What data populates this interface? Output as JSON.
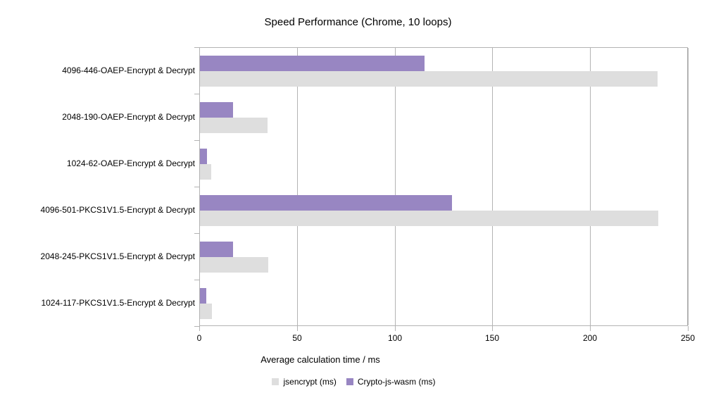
{
  "chart_data": {
    "type": "bar",
    "orientation": "horizontal",
    "title": "Speed Performance (Chrome, 10 loops)",
    "xlabel": "Average calculation time / ms",
    "categories": [
      "4096-446-OAEP-Encrypt & Decrypt",
      "2048-190-OAEP-Encrypt & Decrypt",
      "1024-62-OAEP-Encrypt & Decrypt",
      "4096-501-PKCS1V1.5-Encrypt & Decrypt",
      "2048-245-PKCS1V1.5-Encrypt & Decrypt",
      "1024-117-PKCS1V1.5-Encrypt & Decrypt"
    ],
    "series": [
      {
        "name": "jsencrypt (ms)",
        "color": "#dedede",
        "values": [
          234,
          34.5,
          5.8,
          234.5,
          34.8,
          6.1
        ]
      },
      {
        "name": "Crypto-js-wasm (ms)",
        "color": "#9886c2",
        "values": [
          115,
          17,
          3.7,
          129,
          17,
          3.3
        ]
      }
    ],
    "xlim": [
      0,
      250
    ],
    "xticks": [
      0,
      50,
      100,
      150,
      200,
      250
    ],
    "grid": true,
    "legend_position": "bottom",
    "colors": {
      "axis": "#b3b3b3",
      "grid": "#b3b3b3",
      "text": "#000000",
      "background": "#ffffff"
    }
  }
}
